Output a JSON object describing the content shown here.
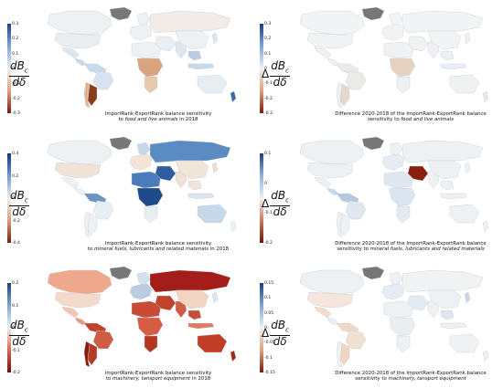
{
  "panels": [
    {
      "id": "p1",
      "kind": "level",
      "ticks": [
        "0.3",
        "0.2",
        "0.1",
        "0",
        "-0.1",
        "-0.2",
        "-0.3"
      ],
      "ylabel_num": "dB",
      "ylabel_sub": "c",
      "ylabel_den": "dδ",
      "caption_main": "ImportRank-ExportRank balance sensitivity",
      "caption_to": "to ",
      "caption_italic": "food and live animals",
      "caption_tail": " in 2018",
      "cmap": [
        "#1f3f7a",
        "#7fa6cf",
        "#eef1f4",
        "#d9a37e",
        "#7a1f10"
      ]
    },
    {
      "id": "p2",
      "kind": "difference",
      "ticks": [
        "0.3",
        "0.2",
        "0.1",
        "0",
        "-0.1",
        "-0.2",
        "-0.3"
      ],
      "ylabel_prefix": "Δ",
      "ylabel_num": "dB",
      "ylabel_sub": "c",
      "ylabel_den": "dδ",
      "caption_main": "Difference 2020-2018 of the ImportRank-ExportRank balance",
      "caption_to": "sensitivity to ",
      "caption_italic": "food and live animals",
      "caption_tail": "",
      "cmap": [
        "#1f3f7a",
        "#7fa6cf",
        "#eef1f4",
        "#d9a37e",
        "#7a1f10"
      ]
    },
    {
      "id": "p3",
      "kind": "level",
      "ticks": [
        "0.4",
        "0.2",
        "0",
        "-0.2",
        "-0.4"
      ],
      "ylabel_num": "dB",
      "ylabel_sub": "c",
      "ylabel_den": "dδ",
      "caption_main": "ImportRank-ExportRank balance sensitivity",
      "caption_to": "to ",
      "caption_italic": "mineral fuels, lubricants and related materials",
      "caption_tail": " in 2018",
      "cmap": [
        "#12357a",
        "#6f99c9",
        "#eef1f4",
        "#d8a07a",
        "#7a1f10"
      ]
    },
    {
      "id": "p4",
      "kind": "difference",
      "ticks": [
        "0.1",
        "0",
        "-0.1",
        "-0.2"
      ],
      "ylabel_prefix": "Δ",
      "ylabel_num": "dB",
      "ylabel_sub": "c",
      "ylabel_den": "dδ",
      "caption_main": "Difference 2020-2018 of the ImportRank-ExportRank balance",
      "caption_to": "sensitivity to ",
      "caption_italic": "mineral fuels, lubricants and related materials",
      "caption_tail": "",
      "cmap": [
        "#1f3f7a",
        "#8fb2d6",
        "#eef1f4",
        "#c87a5a",
        "#6e1608"
      ]
    },
    {
      "id": "p5",
      "kind": "level",
      "ticks": [
        "0.2",
        "0.1",
        "0",
        "-0.1",
        "-0.2"
      ],
      "ylabel_num": "dB",
      "ylabel_sub": "c",
      "ylabel_den": "dδ",
      "caption_main": "ImportRank-ExportRank balance sensitivity",
      "caption_to": "to ",
      "caption_italic": "machinery, tansport equipment",
      "caption_tail": " in 2018",
      "cmap": [
        "#1f3f7a",
        "#7fa6cf",
        "#eef1f4",
        "#d26a4e",
        "#7a0d0d"
      ]
    },
    {
      "id": "p6",
      "kind": "difference",
      "ticks": [
        "0.15",
        "0.1",
        "0.05",
        "0",
        "-0.05",
        "-0.1",
        "-0.15"
      ],
      "ylabel_prefix": "Δ",
      "ylabel_num": "dB",
      "ylabel_sub": "c",
      "ylabel_den": "dδ",
      "caption_main": "Difference 2020-2018 of the ImportRank-ExportRank balance",
      "caption_to": "sensitivity to ",
      "caption_italic": "machinery, tansport equipment",
      "caption_tail": "",
      "cmap": [
        "#1f3f7a",
        "#7fa6cf",
        "#eef1f4",
        "#d9a37e",
        "#7a1f10"
      ]
    }
  ],
  "region_fill": {
    "p1": {
      "greenland": "#777",
      "canada": "#eef1f4",
      "usa": "#e8edf2",
      "mexico": "#dde6ef",
      "central_am": "#c9d9ea",
      "south_am": "#c8daea",
      "brazil": "#d7e4f0",
      "argentina": "#8a3b1c",
      "chile": "#dfb392",
      "europe": "#eef1f4",
      "scandinavia": "#eef1f4",
      "russia": "#f1ece7",
      "africa_n": "#eef1f4",
      "africa_c": "#d9a37e",
      "africa_s": "#e7c9b0",
      "mideast": "#e9eef3",
      "india": "#dde6ef",
      "china": "#eef1f4",
      "se_asia": "#b8cde3",
      "australia": "#e8edf2",
      "nz": "#3a6aa6",
      "japan": "#dde6ef",
      "indonesia": "#c7d8ea"
    },
    "p2": {
      "greenland": "#777",
      "canada": "#f2f3f4",
      "usa": "#f1f2f3",
      "mexico": "#eef0f3",
      "central_am": "#eef0f3",
      "south_am": "#ece9e7",
      "brazil": "#eceae8",
      "argentina": "#e5d7cc",
      "chile": "#eef0f3",
      "europe": "#f1f2f3",
      "scandinavia": "#f2f3f4",
      "russia": "#f2f3f4",
      "africa_n": "#f0f1f3",
      "africa_c": "#e7d2c2",
      "africa_s": "#eef0f3",
      "mideast": "#f0f1f3",
      "india": "#eef0f3",
      "china": "#f2f3f4",
      "se_asia": "#eef0f3",
      "australia": "#f0f1f3",
      "nz": "#e3ebf3",
      "japan": "#eef0f3",
      "indonesia": "#e8eef4"
    },
    "p3": {
      "greenland": "#777",
      "canada": "#eef1f4",
      "usa": "#f0e3d7",
      "mexico": "#eef1f4",
      "central_am": "#eef1f4",
      "south_am": "#6b94c6",
      "brazil": "#e9eef3",
      "argentina": "#eef1f4",
      "chile": "#eef1f4",
      "europe": "#f2e4d6",
      "scandinavia": "#c7d8ea",
      "russia": "#5a8bc3",
      "africa_n": "#4a7bbb",
      "africa_c": "#1e4a8a",
      "africa_s": "#e8edf2",
      "mideast": "#2d5d9f",
      "india": "#f0e1d3",
      "china": "#f2e6da",
      "se_asia": "#f1e4d8",
      "australia": "#c7d8ea",
      "nz": "#eef1f4",
      "japan": "#eedfd1",
      "indonesia": "#dbe5ef"
    },
    "p4": {
      "greenland": "#777",
      "canada": "#eef1f4",
      "usa": "#eef1f4",
      "mexico": "#eef1f4",
      "central_am": "#c7d8ea",
      "south_am": "#b3c9e0",
      "brazil": "#dfe7ef",
      "argentina": "#eef1f4",
      "chile": "#eef1f4",
      "europe": "#e5ecf3",
      "scandinavia": "#eef1f4",
      "russia": "#eef1f4",
      "africa_n": "#dfe7ef",
      "africa_c": "#dbe5ef",
      "africa_s": "#e3eaf1",
      "mideast": "#8a1f10",
      "india": "#eef1f4",
      "china": "#eef1f4",
      "se_asia": "#eef1f4",
      "australia": "#eef1f4",
      "nz": "#eef1f4",
      "japan": "#eef1f4",
      "indonesia": "#eef1f4"
    },
    "p5": {
      "greenland": "#777",
      "canada": "#eea88c",
      "usa": "#f4dacb",
      "mexico": "#f1c7b3",
      "central_am": "#e89a7d",
      "south_am": "#c0432d",
      "brazil": "#cf5d44",
      "argentina": "#b73a24",
      "chile": "#8a1a10",
      "europe": "#b9cce2",
      "scandinavia": "#d3e0ee",
      "russia": "#a51d19",
      "africa_n": "#c94a35",
      "africa_c": "#d65d43",
      "africa_s": "#b43521",
      "mideast": "#c0432d",
      "india": "#cf5d44",
      "china": "#f2d4c2",
      "se_asia": "#c55039",
      "australia": "#c23d25",
      "nz": "#a22a1a",
      "japan": "#dbe5ef",
      "indonesia": "#e17a5e"
    },
    "p6": {
      "greenland": "#777",
      "canada": "#eef1f4",
      "usa": "#f4e6dc",
      "mexico": "#f1dccd",
      "central_am": "#eef1f4",
      "south_am": "#efd8c7",
      "brazil": "#f2e0d3",
      "argentina": "#efd6c4",
      "chile": "#eef1f4",
      "europe": "#e5ecf3",
      "scandinavia": "#eef1f4",
      "russia": "#f0f2f4",
      "africa_n": "#eef1f4",
      "africa_c": "#e9eef3",
      "africa_s": "#eef1f4",
      "mideast": "#e3eaf1",
      "india": "#eef1f4",
      "china": "#eef1f4",
      "se_asia": "#dfe7ef",
      "australia": "#f0f1f3",
      "nz": "#eef1f4",
      "japan": "#c7d8ea",
      "indonesia": "#eef1f4"
    }
  }
}
